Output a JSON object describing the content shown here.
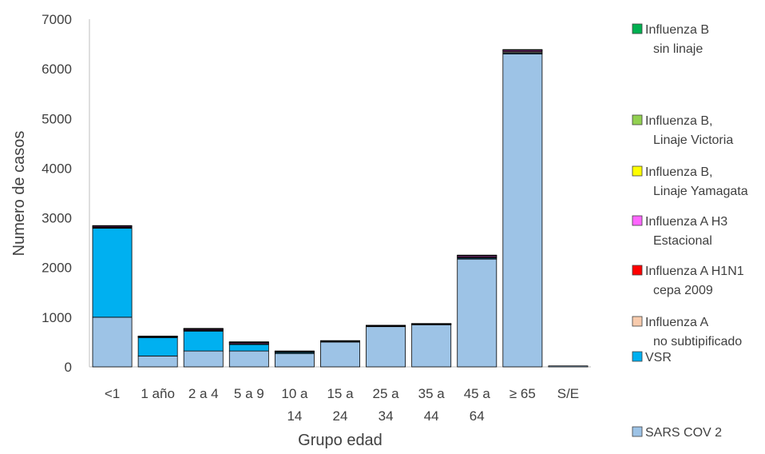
{
  "chart_data": {
    "type": "bar",
    "stacked": true,
    "title": "",
    "xlabel": "Grupo edad",
    "ylabel": "Numero de casos",
    "ylim": [
      0,
      7000
    ],
    "yticks": [
      0,
      1000,
      2000,
      3000,
      4000,
      5000,
      6000,
      7000
    ],
    "grid": false,
    "legend_position": "right",
    "categories": [
      [
        "<1"
      ],
      [
        "1 año"
      ],
      [
        "2 a 4"
      ],
      [
        "5 a 9"
      ],
      [
        "10 a",
        "14"
      ],
      [
        "15 a",
        "24"
      ],
      [
        "25 a",
        "34"
      ],
      [
        "35 a",
        "44"
      ],
      [
        "45 a",
        "64"
      ],
      [
        "≥ 65"
      ],
      [
        "S/E"
      ]
    ],
    "series": [
      {
        "name": [
          "SARS COV 2"
        ],
        "color": "#9DC3E6",
        "values": [
          1000,
          220,
          320,
          320,
          270,
          500,
          810,
          850,
          2170,
          6300,
          20
        ]
      },
      {
        "name": [
          "VSR"
        ],
        "color": "#00B0F0",
        "values": [
          1790,
          370,
          400,
          130,
          20,
          10,
          10,
          5,
          20,
          20,
          0
        ]
      },
      {
        "name": [
          "Influenza A",
          "no subtipificado"
        ],
        "color": "#F8CBAD",
        "values": [
          15,
          10,
          15,
          15,
          10,
          5,
          5,
          5,
          15,
          20,
          0
        ]
      },
      {
        "name": [
          "Influenza A H1N1",
          "cepa 2009"
        ],
        "color": "#FF0000",
        "values": [
          5,
          3,
          5,
          5,
          3,
          2,
          2,
          2,
          5,
          8,
          0
        ]
      },
      {
        "name": [
          "Influenza A H3",
          "Estacional"
        ],
        "color": "#FF66FF",
        "values": [
          20,
          10,
          20,
          20,
          10,
          5,
          5,
          5,
          25,
          25,
          0
        ]
      },
      {
        "name": [
          "Influenza B,",
          "Linaje Yamagata"
        ],
        "color": "#FFFF00",
        "values": [
          5,
          2,
          5,
          5,
          2,
          2,
          2,
          2,
          5,
          5,
          0
        ]
      },
      {
        "name": [
          "Influenza B,",
          "Linaje Victoria"
        ],
        "color": "#92D050",
        "values": [
          5,
          2,
          5,
          5,
          2,
          2,
          2,
          2,
          5,
          5,
          0
        ]
      },
      {
        "name": [
          "Influenza B",
          "sin linaje"
        ],
        "color": "#00B050",
        "values": [
          5,
          2,
          5,
          5,
          3,
          2,
          2,
          2,
          5,
          5,
          0
        ]
      }
    ]
  }
}
